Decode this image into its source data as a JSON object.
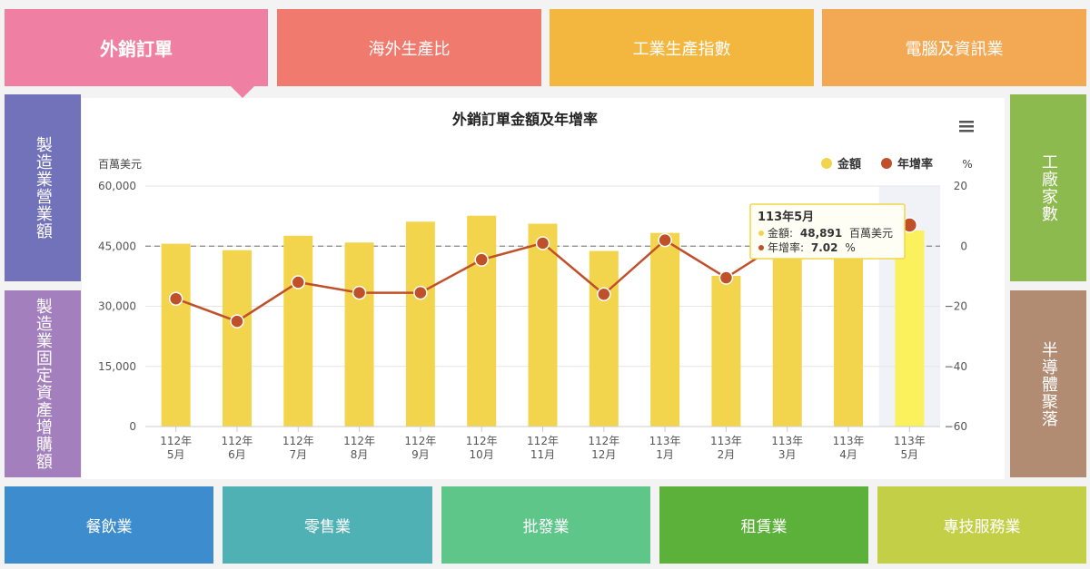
{
  "tabs_top": [
    "外銷訂單",
    "海外生產比",
    "工業生產指數",
    "電腦及資訊業"
  ],
  "tabs_left": [
    "製造業營業額",
    "製造業固定資產增購額"
  ],
  "tabs_right": [
    "工廠家數",
    "半導體聚落"
  ],
  "tabs_bottom": [
    "餐飲業",
    "零售業",
    "批發業",
    "租賃業",
    "專技服務業"
  ],
  "menu_icon": "hamburger-menu-icon",
  "colors": {
    "bar": "#f2d54c",
    "bar_highlight": "#fbf15c",
    "line": "#c0502a",
    "marker": "#c0502a"
  },
  "chart_data": {
    "type": "bar",
    "title": "外銷訂單金額及年增率",
    "y_left_label": "百萬美元",
    "y_right_label": "%",
    "categories": [
      "112年\n5月",
      "112年\n6月",
      "112年\n7月",
      "112年\n8月",
      "112年\n9月",
      "112年\n10月",
      "112年\n11月",
      "112年\n12月",
      "113年\n1月",
      "113年\n2月",
      "113年\n3月",
      "113年\n4月",
      "113年\n5月"
    ],
    "y_left_ticks": [
      "0",
      "15,000",
      "30,000",
      "45,000",
      "60,000"
    ],
    "y_right_ticks": [
      "−60",
      "−40",
      "−20",
      "0",
      "20"
    ],
    "ylim_left": [
      0,
      60000
    ],
    "ylim_right": [
      -60,
      20
    ],
    "series": [
      {
        "name": "金額",
        "type": "bar",
        "axis": "left",
        "values": [
          45600,
          44000,
          47600,
          45900,
          51100,
          52600,
          50600,
          43800,
          48300,
          37600,
          45000,
          45500,
          48891
        ]
      },
      {
        "name": "年增率",
        "type": "line",
        "axis": "right",
        "values": [
          -17.5,
          -25,
          -12,
          -15.5,
          -15.5,
          -4.5,
          1,
          -16,
          2,
          -10.5,
          2.5,
          10.7,
          7.02
        ]
      }
    ],
    "dashed_reference": 0,
    "highlight_index": 12,
    "tooltip": {
      "title": "113年5月",
      "rows": [
        {
          "label": "金額:",
          "value": "48,891",
          "unit": "百萬美元"
        },
        {
          "label": "年增率:",
          "value": "7.02",
          "unit": "%"
        }
      ]
    },
    "legend": {
      "position": "top-right"
    }
  }
}
